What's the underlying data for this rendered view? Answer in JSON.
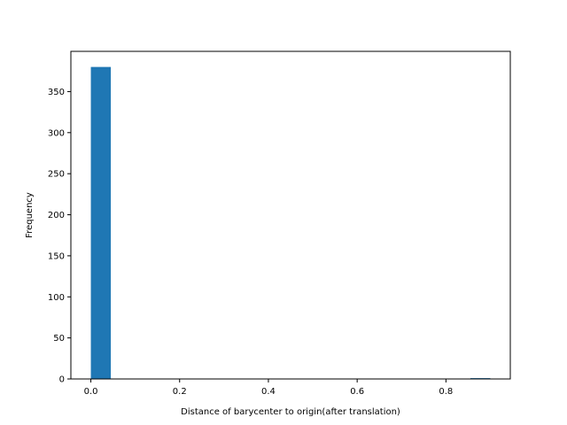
{
  "chart_data": {
    "type": "bar",
    "title": "",
    "xlabel": "Distance of barycenter to origin(after translation)",
    "ylabel": "Frequency",
    "xlim": [
      -0.045,
      0.945
    ],
    "ylim": [
      0,
      399
    ],
    "xticks": [
      0.0,
      0.2,
      0.4,
      0.6,
      0.8
    ],
    "xtick_labels": [
      "0.0",
      "0.2",
      "0.4",
      "0.6",
      "0.8"
    ],
    "yticks": [
      0,
      50,
      100,
      150,
      200,
      250,
      300,
      350
    ],
    "ytick_labels": [
      "0",
      "50",
      "100",
      "150",
      "200",
      "250",
      "300",
      "350"
    ],
    "bins": [
      {
        "start": 0.0,
        "end": 0.045,
        "count": 380
      },
      {
        "start": 0.045,
        "end": 0.09,
        "count": 0
      },
      {
        "start": 0.09,
        "end": 0.135,
        "count": 0
      },
      {
        "start": 0.135,
        "end": 0.18,
        "count": 0
      },
      {
        "start": 0.18,
        "end": 0.225,
        "count": 0
      },
      {
        "start": 0.225,
        "end": 0.27,
        "count": 0
      },
      {
        "start": 0.27,
        "end": 0.315,
        "count": 0
      },
      {
        "start": 0.315,
        "end": 0.36,
        "count": 0
      },
      {
        "start": 0.36,
        "end": 0.405,
        "count": 0
      },
      {
        "start": 0.405,
        "end": 0.45,
        "count": 0
      },
      {
        "start": 0.45,
        "end": 0.495,
        "count": 0
      },
      {
        "start": 0.495,
        "end": 0.54,
        "count": 0
      },
      {
        "start": 0.54,
        "end": 0.585,
        "count": 0
      },
      {
        "start": 0.585,
        "end": 0.63,
        "count": 0
      },
      {
        "start": 0.63,
        "end": 0.675,
        "count": 0
      },
      {
        "start": 0.675,
        "end": 0.72,
        "count": 0
      },
      {
        "start": 0.72,
        "end": 0.765,
        "count": 0
      },
      {
        "start": 0.765,
        "end": 0.81,
        "count": 0
      },
      {
        "start": 0.81,
        "end": 0.855,
        "count": 0
      },
      {
        "start": 0.855,
        "end": 0.9,
        "count": 1
      }
    ],
    "bar_color": "#1f77b4",
    "grid": false,
    "legend": "none"
  }
}
